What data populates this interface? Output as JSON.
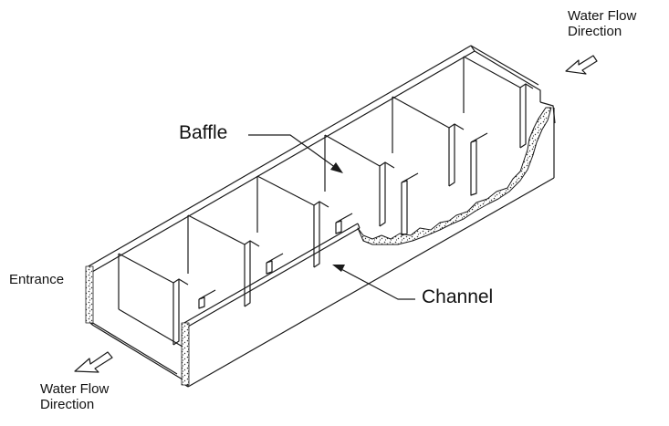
{
  "labels": {
    "water_flow_top_line1": "Water Flow",
    "water_flow_top_line2": "Direction",
    "baffle": "Baffle",
    "entrance": "Entrance",
    "channel": "Channel",
    "water_flow_bottom_line1": "Water Flow",
    "water_flow_bottom_line2": "Direction"
  },
  "colors": {
    "line": "#1a1a1a",
    "background": "#ffffff"
  }
}
